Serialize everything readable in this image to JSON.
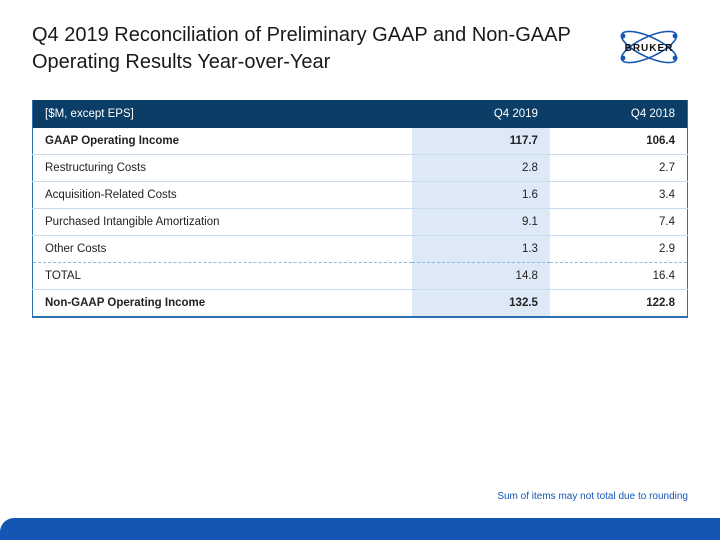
{
  "colors": {
    "header_bg": "#0b3d66",
    "header_fg": "#ffffff",
    "col2_bg": "#dde9f7",
    "row_border": "#c9dcef",
    "dash_border": "#8fb8e0",
    "outer_border": "#2e6fb0",
    "accent": "#1556b5",
    "logo_stroke": "#1556b5",
    "logo_text": "#111111"
  },
  "title": "Q4 2019 Reconciliation of Preliminary GAAP and Non-GAAP Operating Results Year-over-Year",
  "logo_text": "BRUKER",
  "table": {
    "columns": [
      "[$M, except EPS]",
      "Q4 2019",
      "Q4 2018"
    ],
    "rows": [
      {
        "label": "GAAP Operating Income",
        "c1": "117.7",
        "c2": "106.4",
        "bold": true
      },
      {
        "label": "Restructuring Costs",
        "c1": "2.8",
        "c2": "2.7"
      },
      {
        "label": "Acquisition-Related Costs",
        "c1": "1.6",
        "c2": "3.4"
      },
      {
        "label": "Purchased Intangible Amortization",
        "c1": "9.1",
        "c2": "7.4"
      },
      {
        "label": "Other Costs",
        "c1": "1.3",
        "c2": "2.9",
        "dashed": true
      },
      {
        "label": "TOTAL",
        "c1": "14.8",
        "c2": "16.4"
      },
      {
        "label": "Non-GAAP Operating Income",
        "c1": "132.5",
        "c2": "122.8",
        "bold": true,
        "last": true
      }
    ],
    "col_widths": [
      "58%",
      "21%",
      "21%"
    ]
  },
  "footnote": "Sum of items may not total due to rounding"
}
